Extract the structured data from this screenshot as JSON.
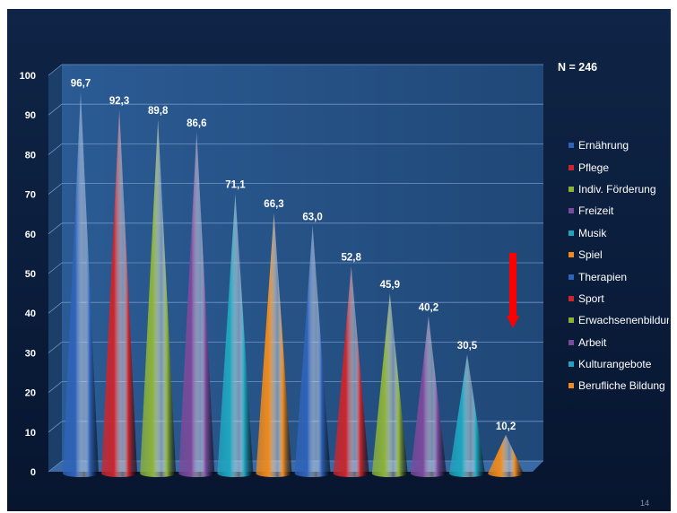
{
  "header": {
    "sample_size": "N = 246"
  },
  "page_number": "14",
  "colors": {
    "blue": "#2f63b8",
    "red": "#c9262e",
    "green": "#8cb23a",
    "purple": "#7a4a9c",
    "teal": "#1fa5bf",
    "orange": "#ee8a1e",
    "arrow": "#ff0000"
  },
  "chart_data": {
    "type": "bar",
    "bar_shape": "cone",
    "categories": [
      "Ernährung",
      "Pflege",
      "Indiv. Förderung",
      "Freizeit",
      "Musik",
      "Spiel",
      "Therapien",
      "Sport",
      "Erwachsenenbildung",
      "Arbeit",
      "Kulturangebote",
      "Berufliche Bildung"
    ],
    "values": [
      96.7,
      92.3,
      89.8,
      86.6,
      71.1,
      66.3,
      63.0,
      52.8,
      45.9,
      40.2,
      30.5,
      10.2
    ],
    "value_labels": [
      "96,7",
      "92,3",
      "89,8",
      "86,6",
      "71,1",
      "66,3",
      "63,0",
      "52,8",
      "45,9",
      "40,2",
      "30,5",
      "10,2"
    ],
    "bar_colors": [
      "#2f63b8",
      "#c9262e",
      "#8cb23a",
      "#7a4a9c",
      "#1fa5bf",
      "#ee8a1e",
      "#2f63b8",
      "#c9262e",
      "#8cb23a",
      "#7a4a9c",
      "#1fa5bf",
      "#ee8a1e"
    ],
    "ylim": [
      0,
      100
    ],
    "yticks": [
      0,
      10,
      20,
      30,
      40,
      50,
      60,
      70,
      80,
      90,
      100
    ],
    "grid": true,
    "legend_position": "right",
    "annotation": "N = 246"
  }
}
